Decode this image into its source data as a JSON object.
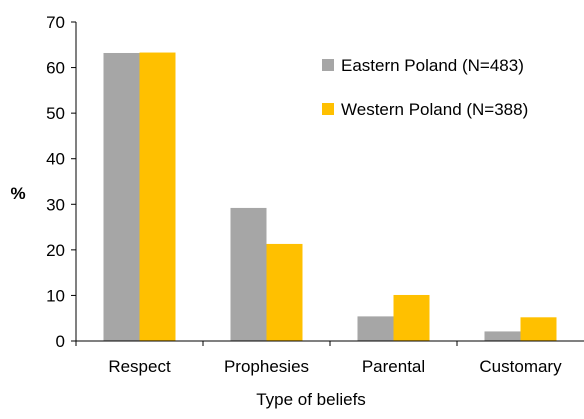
{
  "chart_data": {
    "type": "bar",
    "categories": [
      "Respect",
      "Prophesies",
      "Parental",
      "Customary"
    ],
    "series": [
      {
        "name": "Eastern Poland (N=483)",
        "values": [
          63.2,
          29.2,
          5.4,
          2.1
        ],
        "color": "#a6a6a6"
      },
      {
        "name": "Western Poland (N=388)",
        "values": [
          63.3,
          21.3,
          10.1,
          5.2
        ],
        "color": "#ffc000"
      }
    ],
    "xlabel": "Type of beliefs",
    "ylabel": "%",
    "ylim": [
      0,
      70
    ],
    "yticks": [
      0,
      10,
      20,
      30,
      40,
      50,
      60,
      70
    ],
    "grid": false,
    "legend_position": "top-right"
  }
}
